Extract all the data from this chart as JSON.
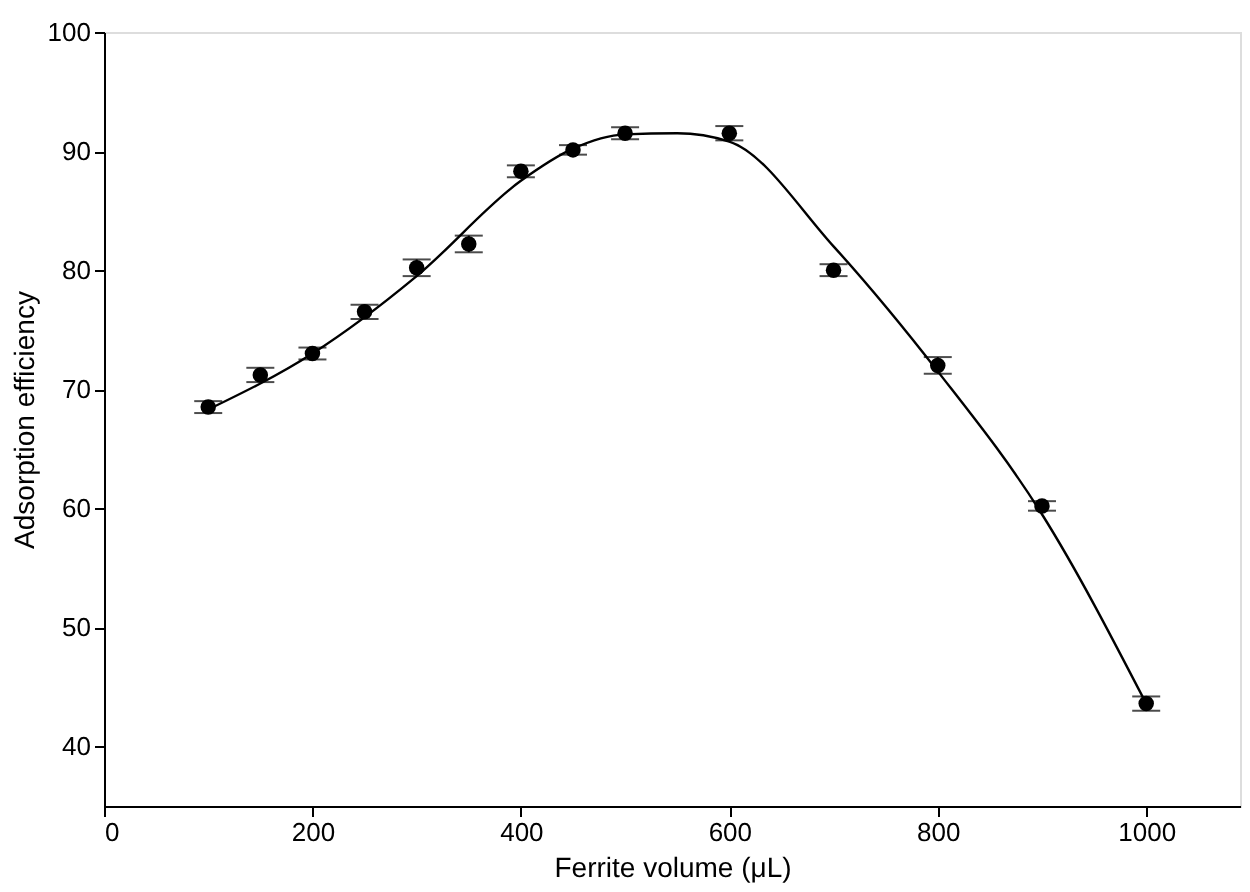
{
  "chart_data": {
    "type": "scatter",
    "xlabel": "Ferrite volume (μL)",
    "ylabel": "Adsorption efficiency",
    "xlim": [
      0,
      1090
    ],
    "xticks": [
      0,
      200,
      400,
      600,
      800,
      1000
    ],
    "ylim": [
      35,
      100
    ],
    "yticks": [
      40,
      50,
      60,
      70,
      80,
      90,
      100
    ],
    "grid": false,
    "series": [
      {
        "color": "#000000",
        "marker": "circle",
        "x": [
          100,
          150,
          200,
          250,
          300,
          350,
          400,
          450,
          500,
          600,
          700,
          800,
          900,
          1000
        ],
        "values": [
          68.5,
          71.2,
          73,
          76.5,
          80.2,
          82.2,
          88.3,
          90.1,
          91.5,
          91.5,
          80,
          72,
          60.2,
          43.6
        ],
        "errors": [
          0.5,
          0.6,
          0.5,
          0.6,
          0.7,
          0.7,
          0.5,
          0.4,
          0.5,
          0.6,
          0.5,
          0.7,
          0.4,
          0.6
        ]
      },
      {
        "type": "line",
        "color": "#000000",
        "line_style": "solid",
        "x": [
          100,
          200,
          300,
          400,
          450,
          500,
          550,
          600,
          700,
          800,
          900,
          1000
        ],
        "values": [
          68.3,
          73,
          79.5,
          87.5,
          90.2,
          91.4,
          91.5,
          90.8,
          82,
          71.5,
          59.5,
          43.6
        ]
      }
    ]
  }
}
